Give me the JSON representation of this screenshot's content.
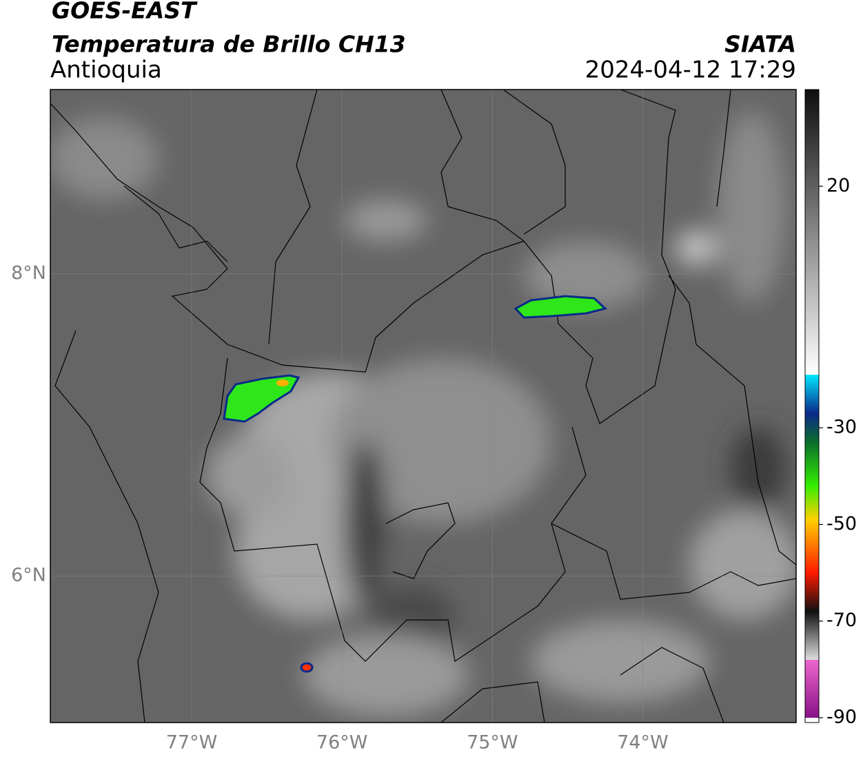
{
  "chart_data": {
    "type": "map",
    "title": "GOES-EAST",
    "subtitle": "Temperatura de Brillo CH13",
    "region": "Antioquia",
    "source": "SIATA",
    "datetime": "2024-04-12 17:29",
    "xlim": [
      -77.94,
      -72.98
    ],
    "ylim": [
      5.03,
      9.22
    ],
    "xticks": [
      {
        "value": -77,
        "label": "77°W"
      },
      {
        "value": -76,
        "label": "76°W"
      },
      {
        "value": -75,
        "label": "75°W"
      },
      {
        "value": -74,
        "label": "74°W"
      }
    ],
    "yticks": [
      {
        "value": 6,
        "label": "6°N"
      },
      {
        "value": 8,
        "label": "8°N"
      }
    ],
    "grid": true,
    "colorbar": {
      "lim": [
        -91,
        40
      ],
      "ticks": [
        20,
        -30,
        -50,
        -70,
        -90
      ],
      "stops": [
        {
          "value": 40,
          "color": "#0e0e0e"
        },
        {
          "value": -19,
          "color": "#ffffff"
        },
        {
          "value": -19,
          "color": "#00e8ff"
        },
        {
          "value": -27,
          "color": "#0a2a8a"
        },
        {
          "value": -33,
          "color": "#0b6e2b"
        },
        {
          "value": -42,
          "color": "#33ee00"
        },
        {
          "value": -49,
          "color": "#ffd000"
        },
        {
          "value": -60,
          "color": "#ff1a00"
        },
        {
          "value": -68,
          "color": "#111111"
        },
        {
          "value": -78,
          "color": "#dddddd"
        },
        {
          "value": -78,
          "color": "#ee66cc"
        },
        {
          "value": -90,
          "color": "#881188"
        },
        {
          "value": -90,
          "color": "#ffffff"
        },
        {
          "value": -91,
          "color": "#ffffff"
        }
      ]
    }
  }
}
